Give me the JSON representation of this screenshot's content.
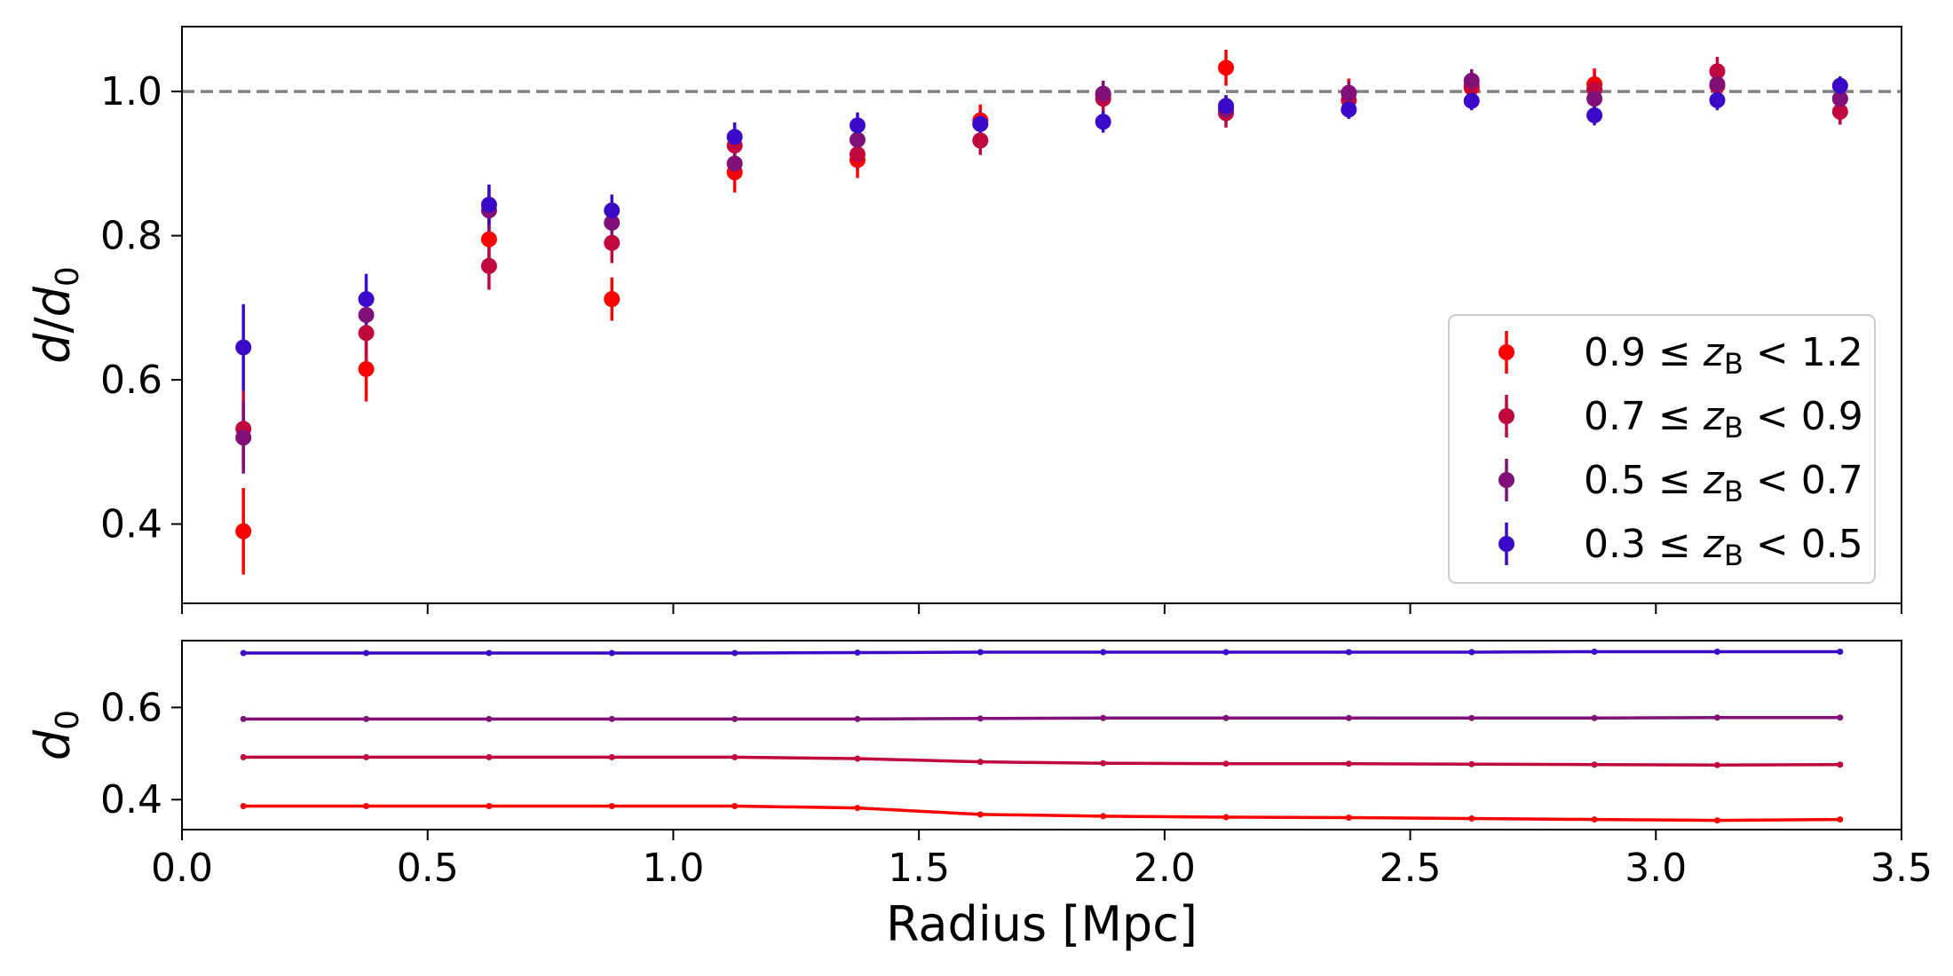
{
  "chart_data": [
    {
      "type": "scatter",
      "panel": "top",
      "title": "",
      "ylabel": "d/d0",
      "xlabel": "",
      "xlim": [
        0.0,
        3.5
      ],
      "ylim": [
        0.29,
        1.09
      ],
      "yticks": [
        0.4,
        0.6,
        0.8,
        1.0
      ],
      "ytick_labels": [
        "0.4",
        "0.6",
        "0.8",
        "1.0"
      ],
      "reference_line": 1.0,
      "legend_position": "lower-right",
      "x": [
        0.125,
        0.375,
        0.625,
        0.875,
        1.125,
        1.375,
        1.625,
        1.875,
        2.125,
        2.375,
        2.625,
        2.875,
        3.125,
        3.375
      ],
      "series": [
        {
          "name": "0.9 ≤ zB < 1.2",
          "range_low": "0.9",
          "range_high": "1.2",
          "color": "#ff0000",
          "values": [
            0.39,
            0.615,
            0.795,
            0.712,
            0.888,
            0.905,
            0.96,
            0.995,
            1.033,
            0.998,
            1.005,
            1.01,
            1.008,
            0.99
          ],
          "errors": [
            0.06,
            0.045,
            0.035,
            0.03,
            0.028,
            0.025,
            0.022,
            0.02,
            0.025,
            0.02,
            0.02,
            0.022,
            0.022,
            0.02
          ]
        },
        {
          "name": "0.7 ≤ zB < 0.9",
          "range_low": "0.7",
          "range_high": "0.9",
          "color": "#c0083e",
          "values": [
            0.532,
            0.665,
            0.758,
            0.79,
            0.925,
            0.913,
            0.932,
            0.99,
            0.97,
            0.988,
            1.008,
            1.003,
            1.028,
            0.972
          ],
          "errors": [
            0.055,
            0.04,
            0.033,
            0.028,
            0.025,
            0.022,
            0.02,
            0.02,
            0.02,
            0.018,
            0.018,
            0.02,
            0.02,
            0.018
          ]
        },
        {
          "name": "0.5 ≤ zB < 0.7",
          "range_low": "0.5",
          "range_high": "0.7",
          "color": "#801078",
          "values": [
            0.52,
            0.69,
            0.835,
            0.818,
            0.9,
            0.933,
            0.955,
            0.997,
            0.975,
            0.998,
            1.015,
            0.99,
            1.01,
            0.99
          ],
          "errors": [
            0.05,
            0.035,
            0.03,
            0.025,
            0.023,
            0.02,
            0.018,
            0.018,
            0.018,
            0.016,
            0.016,
            0.018,
            0.018,
            0.016
          ]
        },
        {
          "name": "0.3 ≤ zB < 0.5",
          "range_low": "0.3",
          "range_high": "0.5",
          "color": "#3a0ac8",
          "values": [
            0.645,
            0.712,
            0.843,
            0.835,
            0.937,
            0.953,
            0.955,
            0.958,
            0.98,
            0.975,
            0.987,
            0.967,
            0.988,
            1.008
          ],
          "errors": [
            0.06,
            0.035,
            0.028,
            0.022,
            0.02,
            0.018,
            0.015,
            0.015,
            0.015,
            0.013,
            0.013,
            0.014,
            0.014,
            0.013
          ]
        }
      ]
    },
    {
      "type": "line",
      "panel": "bottom",
      "title": "",
      "ylabel": "d0",
      "xlabel": "Radius [Mpc]",
      "xlim": [
        0.0,
        3.5
      ],
      "ylim": [
        0.335,
        0.745
      ],
      "yticks": [
        0.4,
        0.6
      ],
      "ytick_labels": [
        "0.4",
        "0.6"
      ],
      "xticks": [
        0.0,
        0.5,
        1.0,
        1.5,
        2.0,
        2.5,
        3.0,
        3.5
      ],
      "xtick_labels": [
        "0.0",
        "0.5",
        "1.0",
        "1.5",
        "2.0",
        "2.5",
        "3.0",
        "3.5"
      ],
      "x": [
        0.125,
        0.375,
        0.625,
        0.875,
        1.125,
        1.375,
        1.625,
        1.875,
        2.125,
        2.375,
        2.625,
        2.875,
        3.125,
        3.375
      ],
      "series": [
        {
          "name": "0.3 ≤ zB < 0.5",
          "color": "#3a0ac8",
          "values": [
            0.718,
            0.718,
            0.718,
            0.718,
            0.718,
            0.719,
            0.72,
            0.72,
            0.72,
            0.72,
            0.72,
            0.721,
            0.721,
            0.721
          ]
        },
        {
          "name": "0.5 ≤ zB < 0.7",
          "color": "#801078",
          "values": [
            0.575,
            0.575,
            0.575,
            0.575,
            0.575,
            0.575,
            0.576,
            0.577,
            0.577,
            0.577,
            0.577,
            0.577,
            0.578,
            0.578
          ]
        },
        {
          "name": "0.7 ≤ zB < 0.9",
          "color": "#c0083e",
          "values": [
            0.492,
            0.492,
            0.492,
            0.492,
            0.492,
            0.489,
            0.482,
            0.479,
            0.478,
            0.478,
            0.477,
            0.476,
            0.475,
            0.476
          ]
        },
        {
          "name": "0.9 ≤ zB < 1.2",
          "color": "#ff0000",
          "values": [
            0.386,
            0.386,
            0.386,
            0.386,
            0.386,
            0.382,
            0.368,
            0.364,
            0.362,
            0.361,
            0.359,
            0.357,
            0.355,
            0.357
          ]
        }
      ]
    }
  ],
  "colors": {
    "reference_line": "#808080",
    "axes": "#000000",
    "legend_border": "#cccccc"
  }
}
